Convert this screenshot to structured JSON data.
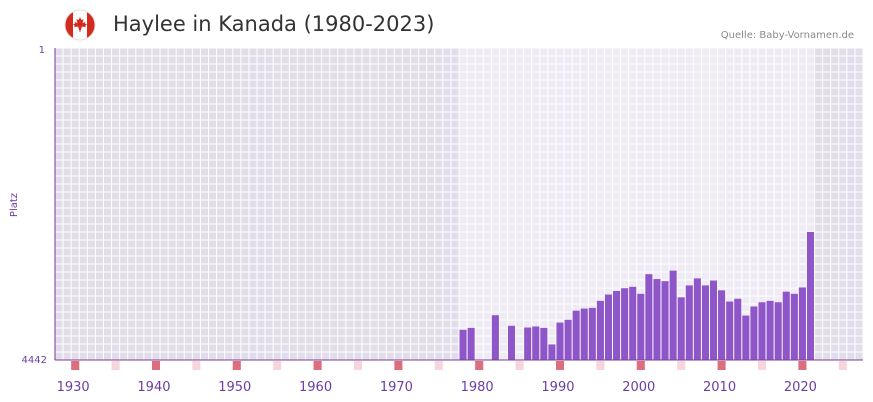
{
  "header": {
    "title": "Haylee in Kanada (1980-2023)",
    "source": "Quelle: Baby-Vornamen.de",
    "flag_icon": "canada-flag-icon"
  },
  "colors": {
    "bar": "#8e56c8",
    "plot_bg_dark": "#e2ddeb",
    "plot_bg_light": "#efebf5",
    "grid": "#ffffff",
    "axis": "#7a3c96",
    "decade_marker": "#de6e7e",
    "five_year_marker": "#f7d5dc",
    "flag_red": "#d52b1e"
  },
  "chart_data": {
    "type": "bar",
    "title": "Haylee in Kanada (1980-2023)",
    "xlabel": "",
    "ylabel": "Platz",
    "x_range": [
      1928,
      2028
    ],
    "ylim": [
      4442,
      1
    ],
    "y_ticks": [
      "1",
      "4442"
    ],
    "x_ticks": [
      "1930",
      "1940",
      "1950",
      "1960",
      "1970",
      "1980",
      "1990",
      "2000",
      "2010",
      "2020"
    ],
    "highlight_range": [
      1978,
      2022
    ],
    "grid": true,
    "years": [
      1978,
      1979,
      1982,
      1984,
      1986,
      1987,
      1988,
      1989,
      1990,
      1991,
      1992,
      1993,
      1994,
      1995,
      1996,
      1997,
      1998,
      1999,
      2000,
      2001,
      2002,
      2003,
      2004,
      2005,
      2006,
      2007,
      2008,
      2009,
      2010,
      2011,
      2012,
      2013,
      2014,
      2015,
      2016,
      2017,
      2018,
      2019,
      2020,
      2021
    ],
    "ranks": [
      4012,
      3985,
      3805,
      3955,
      3980,
      3965,
      3985,
      4220,
      3910,
      3870,
      3740,
      3710,
      3700,
      3600,
      3510,
      3460,
      3420,
      3400,
      3500,
      3220,
      3290,
      3320,
      3170,
      3550,
      3380,
      3280,
      3380,
      3310,
      3450,
      3610,
      3570,
      3810,
      3680,
      3620,
      3600,
      3620,
      3470,
      3500,
      3410,
      2620
    ]
  }
}
